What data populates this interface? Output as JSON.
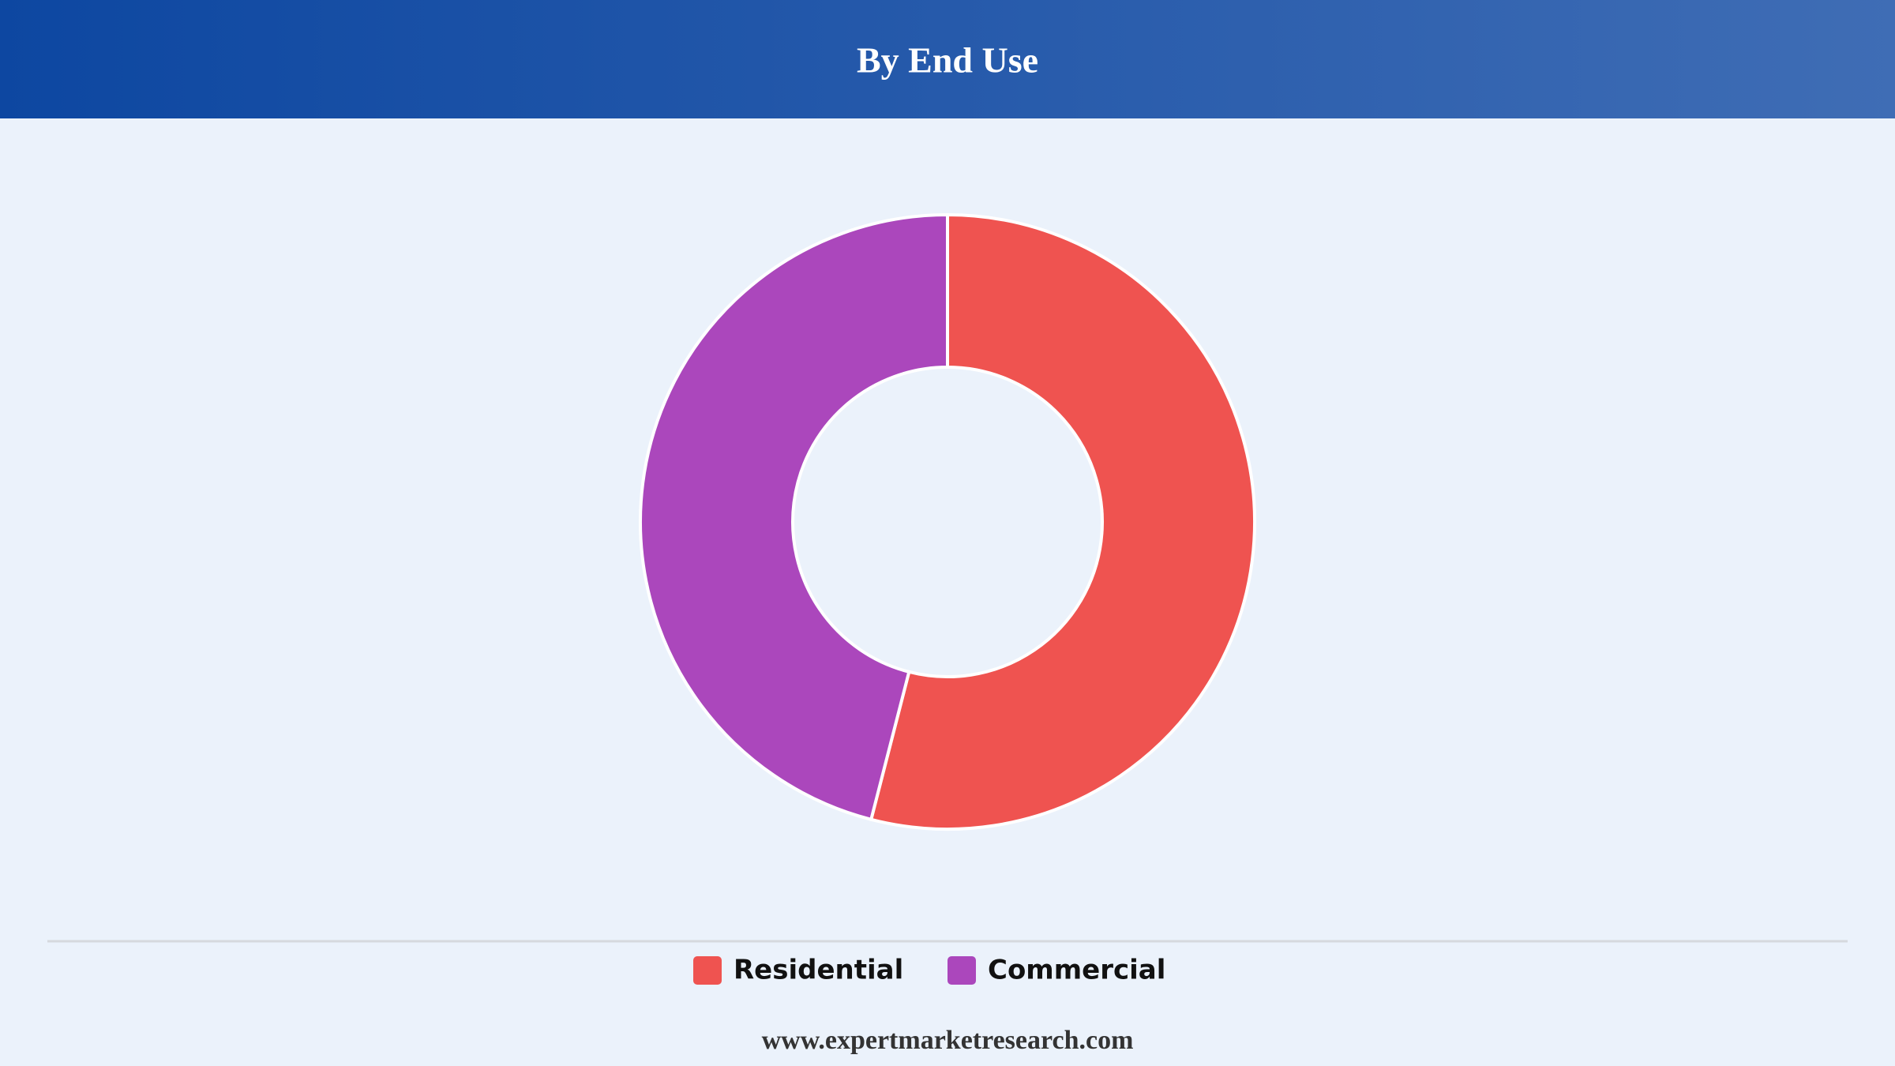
{
  "chart_data": {
    "type": "donut",
    "title": "By End Use",
    "categories": [
      "Residential",
      "Commercial"
    ],
    "values": [
      54,
      46
    ],
    "colors": [
      "#ef5350",
      "#ab47bc"
    ],
    "legend": "bottom",
    "source": "www.expertmarketresearch.com"
  }
}
